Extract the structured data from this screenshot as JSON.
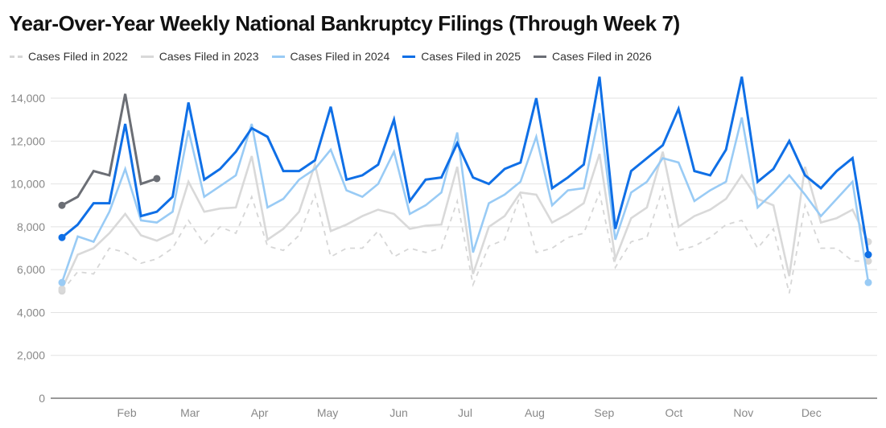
{
  "chart_data": {
    "type": "line",
    "title": "Year-Over-Year Weekly National Bankruptcy Filings (Through Week 7)",
    "xlabel": "",
    "ylabel": "",
    "ylim": [
      0,
      15000
    ],
    "yticks": [
      0,
      2000,
      4000,
      6000,
      8000,
      10000,
      12000,
      14000
    ],
    "ytick_labels": [
      "0",
      "2,000",
      "4,000",
      "6,000",
      "8,000",
      "10,000",
      "12,000",
      "14,000"
    ],
    "x_weeks": 52,
    "month_ticks": [
      {
        "label": "Feb",
        "week": 4.1
      },
      {
        "label": "Mar",
        "week": 8.1
      },
      {
        "label": "Apr",
        "week": 12.5
      },
      {
        "label": "May",
        "week": 16.8
      },
      {
        "label": "Jun",
        "week": 21.3
      },
      {
        "label": "Jul",
        "week": 25.5
      },
      {
        "label": "Aug",
        "week": 29.9
      },
      {
        "label": "Sep",
        "week": 34.3
      },
      {
        "label": "Oct",
        "week": 38.7
      },
      {
        "label": "Nov",
        "week": 43.1
      },
      {
        "label": "Dec",
        "week": 47.4
      }
    ],
    "grid": true,
    "legend_position": "top-left",
    "series": [
      {
        "name": "Cases Filed in 2022",
        "color": "#d6d6d6",
        "dashed": true,
        "values": [
          5000,
          5900,
          5800,
          7000,
          6800,
          6300,
          6500,
          7000,
          8300,
          7200,
          8000,
          7700,
          9400,
          7100,
          6900,
          7600,
          9500,
          6600,
          7000,
          7000,
          7800,
          6600,
          7000,
          6800,
          7000,
          9200,
          5300,
          7100,
          7400,
          9500,
          6800,
          7000,
          7500,
          7700,
          9600,
          6100,
          7300,
          7500,
          9800,
          6900,
          7100,
          7500,
          8100,
          8300,
          7000,
          7900,
          4900,
          9000,
          7000,
          7000,
          6400,
          6400
        ]
      },
      {
        "name": "Cases Filed in 2023",
        "color": "#d9d9d9",
        "dashed": false,
        "values": [
          5100,
          6700,
          7000,
          7700,
          8600,
          7600,
          7350,
          7700,
          10100,
          8700,
          8850,
          8900,
          11300,
          7400,
          7900,
          8700,
          10900,
          7800,
          8100,
          8500,
          8800,
          8600,
          7900,
          8050,
          8100,
          10800,
          5800,
          8000,
          8500,
          9600,
          9500,
          8200,
          8600,
          9100,
          11400,
          6500,
          8400,
          8900,
          11500,
          8000,
          8500,
          8800,
          9300,
          10400,
          9300,
          9000,
          5700,
          10800,
          8200,
          8400,
          8800,
          7300
        ]
      },
      {
        "name": "Cases Filed in 2024",
        "color": "#99cbf5",
        "dashed": false,
        "values": [
          5400,
          7550,
          7300,
          8700,
          10700,
          8300,
          8200,
          8700,
          12500,
          9400,
          9900,
          10400,
          12800,
          8900,
          9300,
          10200,
          10700,
          11600,
          9700,
          9400,
          10000,
          11500,
          8600,
          9000,
          9600,
          12400,
          6800,
          9100,
          9500,
          10100,
          12200,
          9000,
          9700,
          9800,
          13300,
          7400,
          9600,
          10100,
          11200,
          11000,
          9200,
          9700,
          10100,
          13100,
          8900,
          9600,
          10400,
          9500,
          8500,
          9300,
          10100,
          5400
        ]
      },
      {
        "name": "Cases Filed in 2025",
        "color": "#0f6fe6",
        "dashed": false,
        "values": [
          7500,
          8100,
          9100,
          9100,
          12800,
          8500,
          8700,
          9400,
          13800,
          10200,
          10700,
          11500,
          12600,
          12200,
          10600,
          10600,
          11100,
          13600,
          10200,
          10400,
          10900,
          13000,
          9200,
          10200,
          10300,
          11900,
          10300,
          10000,
          10700,
          11000,
          14000,
          9800,
          10300,
          10900,
          15000,
          7900,
          10600,
          11200,
          11800,
          13500,
          10600,
          10400,
          11600,
          15000,
          10100,
          10700,
          12000,
          10400,
          9800,
          10600,
          11200,
          6700
        ]
      },
      {
        "name": "Cases Filed in 2026",
        "color": "#6b6e75",
        "dashed": false,
        "values": [
          9000,
          9400,
          10600,
          10400,
          14200,
          10000,
          10250
        ]
      }
    ]
  }
}
